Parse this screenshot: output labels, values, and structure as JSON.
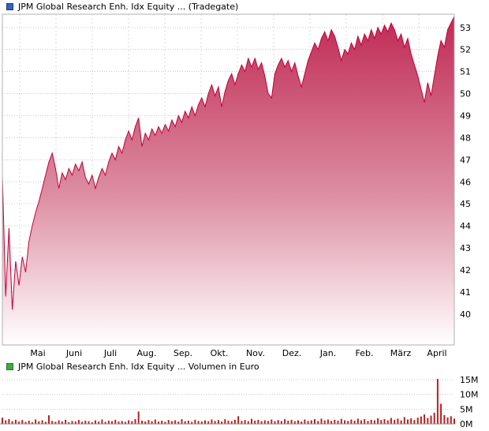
{
  "price_chart": {
    "title": "JPM Global Research Enh. Idx Equity ... (Tradegate)",
    "legend_color": "#3a5fbf",
    "legend_border": "#123d8c"
  },
  "volume_chart": {
    "title": "JPM Global Research Enh. Idx Equity ... Volumen in Euro",
    "legend_color": "#3faa3f",
    "legend_border": "#1f7a1f"
  },
  "chart_data": [
    {
      "type": "area",
      "title": "JPM Global Research Enh. Idx Equity ... (Tradegate)",
      "x_tick_labels": [
        "Mai",
        "Juni",
        "Juli",
        "Aug.",
        "Sep.",
        "Okt.",
        "Nov.",
        "Dez.",
        "Jan.",
        "Feb.",
        "März",
        "April"
      ],
      "y_ticks": [
        40,
        41,
        42,
        43,
        44,
        45,
        46,
        47,
        48,
        49,
        50,
        51,
        52,
        53
      ],
      "ylim": [
        38.6,
        53.6
      ],
      "grid": true,
      "legend_position": "top-left",
      "line_color": "#c00038",
      "fill_top": "#c02a54",
      "fill_mid": "#dd8fa3",
      "fill_bottom": "#ffffff",
      "values": [
        46.3,
        40.8,
        43.9,
        40.2,
        42.4,
        41.3,
        42.6,
        41.9,
        43.3,
        44.0,
        44.6,
        45.1,
        45.7,
        46.3,
        46.9,
        47.3,
        46.6,
        45.7,
        46.4,
        46.1,
        46.6,
        46.3,
        46.8,
        46.5,
        46.9,
        46.2,
        45.9,
        46.3,
        45.7,
        46.2,
        46.6,
        46.3,
        46.9,
        47.3,
        47.0,
        47.6,
        47.3,
        47.9,
        48.3,
        47.9,
        48.5,
        48.9,
        47.6,
        48.2,
        47.9,
        48.4,
        48.1,
        48.5,
        48.2,
        48.6,
        48.3,
        48.8,
        48.5,
        49.0,
        48.7,
        49.2,
        48.9,
        49.4,
        49.0,
        49.5,
        49.8,
        49.4,
        50.0,
        50.4,
        49.9,
        50.3,
        49.4,
        50.1,
        50.6,
        50.9,
        50.4,
        50.9,
        51.3,
        51.0,
        51.6,
        51.2,
        51.6,
        51.1,
        51.4,
        50.8,
        50.0,
        49.8,
        50.9,
        51.3,
        51.6,
        51.2,
        51.5,
        51.0,
        51.4,
        50.8,
        50.3,
        50.9,
        51.5,
        51.9,
        52.3,
        52.0,
        52.5,
        52.8,
        52.4,
        52.9,
        52.6,
        52.1,
        51.5,
        52.0,
        51.8,
        52.3,
        52.0,
        52.6,
        52.2,
        52.7,
        52.4,
        52.9,
        52.5,
        53.0,
        52.7,
        53.1,
        52.8,
        53.2,
        52.9,
        52.4,
        52.7,
        52.1,
        52.5,
        51.8,
        51.3,
        50.8,
        50.2,
        49.6,
        50.5,
        49.9,
        50.8,
        51.7,
        52.4,
        52.1,
        52.9,
        53.2,
        53.5
      ]
    },
    {
      "type": "bar",
      "title": "JPM Global Research Enh. Idx Equity ... Volumen in Euro",
      "ylabel": "Volumen in Euro",
      "y_ticks": [
        0,
        5,
        10,
        15
      ],
      "y_tick_labels": [
        "0M",
        "5M",
        "10M",
        "15M"
      ],
      "ylim": [
        0,
        16
      ],
      "bar_color": "#b22222",
      "values": [
        2.1,
        1.2,
        1.6,
        0.9,
        1.4,
        0.8,
        1.3,
        0.7,
        1.1,
        0.6,
        1.5,
        0.9,
        1.2,
        0.7,
        2.9,
        1.0,
        0.7,
        1.2,
        0.8,
        1.4,
        0.6,
        1.0,
        0.8,
        1.3,
        0.7,
        1.1,
        0.9,
        0.6,
        1.2,
        0.8,
        1.5,
        0.7,
        1.1,
        0.9,
        1.4,
        0.8,
        1.0,
        0.7,
        1.2,
        0.9,
        1.6,
        4.2,
        1.1,
        0.8,
        1.3,
        0.9,
        1.5,
        0.8,
        1.1,
        0.7,
        1.3,
        0.9,
        1.2,
        0.8,
        1.6,
        0.9,
        1.1,
        0.7,
        1.4,
        1.0,
        0.8,
        1.2,
        0.9,
        1.5,
        1.0,
        1.3,
        0.8,
        1.6,
        1.1,
        0.9,
        1.4,
        2.6,
        1.0,
        1.3,
        0.9,
        1.7,
        1.1,
        1.4,
        0.9,
        1.2,
        1.0,
        1.5,
        0.9,
        1.3,
        1.0,
        1.6,
        1.1,
        1.4,
        0.9,
        1.2,
        0.8,
        1.5,
        1.0,
        1.2,
        1.6,
        1.0,
        1.8,
        1.2,
        1.5,
        1.0,
        1.4,
        1.1,
        1.7,
        1.2,
        1.0,
        1.5,
        1.1,
        1.8,
        1.2,
        1.6,
        1.0,
        1.4,
        1.2,
        1.9,
        1.3,
        1.6,
        1.2,
        2.0,
        1.4,
        1.8,
        1.2,
        2.3,
        1.5,
        1.9,
        1.3,
        2.1,
        2.5,
        3.2,
        2.0,
        2.8,
        3.8,
        15.2,
        6.8,
        3.0,
        2.2,
        2.6,
        1.8
      ]
    }
  ]
}
